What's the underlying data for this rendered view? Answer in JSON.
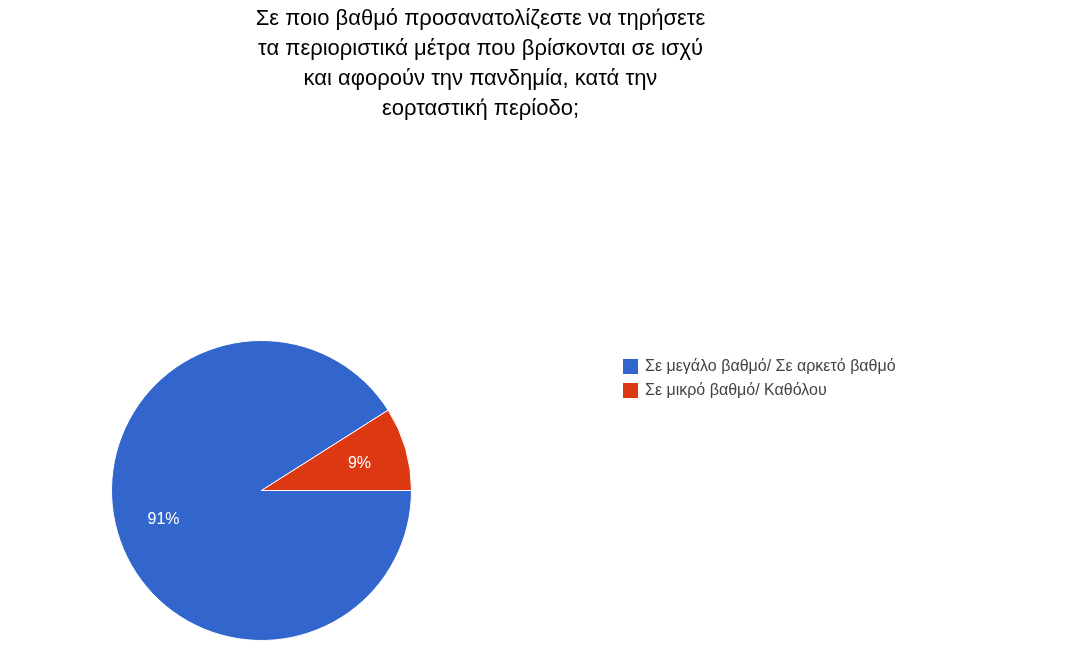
{
  "chart_data": {
    "type": "pie",
    "title": "Σε ποιο βαθμό προσανατολίζεστε να τηρήσετε\nτα περιοριστικά μέτρα που βρίσκονται σε ισχύ\nκαι αφορούν την πανδημία, κατά την\nεορταστική περίοδο;",
    "categories": [
      "Σε μεγάλο βαθμό/ Σε αρκετό βαθμό",
      "Σε μικρό βαθμό/ Καθόλου"
    ],
    "values": [
      91,
      9
    ],
    "colors": [
      "#3366cc",
      "#dc3912"
    ],
    "value_labels": [
      "91%",
      "9%"
    ],
    "legend": "top right"
  }
}
